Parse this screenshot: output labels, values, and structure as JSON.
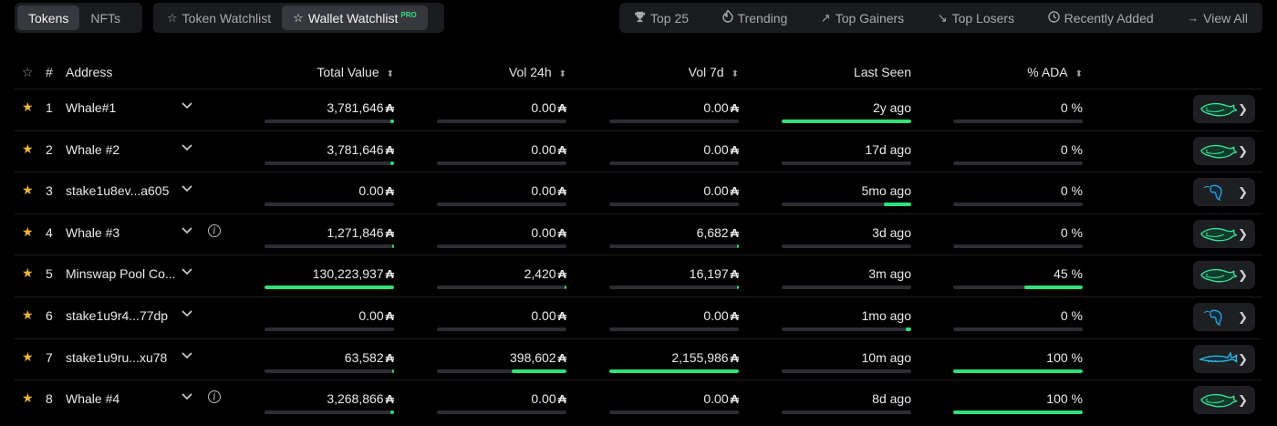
{
  "tabs_primary": [
    {
      "label": "Tokens",
      "active": true
    },
    {
      "label": "NFTs",
      "active": false
    }
  ],
  "tabs_watch": [
    {
      "label": "Token Watchlist",
      "icon": "star-outline-icon",
      "active": false
    },
    {
      "label": "Wallet Watchlist",
      "icon": "star-outline-icon",
      "active": true,
      "badge": "PRO"
    }
  ],
  "tabs_lists": [
    {
      "label": "Top 25",
      "icon": "trophy-icon"
    },
    {
      "label": "Trending",
      "icon": "fire-icon"
    },
    {
      "label": "Top Gainers",
      "icon": "arrow-up-right-icon"
    },
    {
      "label": "Top Losers",
      "icon": "arrow-down-right-icon"
    },
    {
      "label": "Recently Added",
      "icon": "clock-icon"
    },
    {
      "label": "View All",
      "icon": "arrow-right-icon"
    }
  ],
  "columns": {
    "index": "#",
    "address": "Address",
    "total_value": "Total Value",
    "vol24h": "Vol 24h",
    "vol7d": "Vol 7d",
    "last_seen": "Last Seen",
    "pct_ada": "% ADA"
  },
  "currency_symbol": "₳",
  "accent": "#2ee27c",
  "rows": [
    {
      "index": "1",
      "address": "Whale#1",
      "info": false,
      "total": "3,781,646",
      "total_pct": 0.03,
      "vol24": "0.00",
      "vol24_pct": 0.0,
      "vol7": "0.00",
      "vol7_pct": 0.0,
      "seen": "2y ago",
      "seen_pct": 1.0,
      "ada": "0 %",
      "ada_pct": 0.0,
      "whale": "green-whale-icon"
    },
    {
      "index": "2",
      "address": "Whale #2",
      "info": false,
      "total": "3,781,646",
      "total_pct": 0.03,
      "vol24": "0.00",
      "vol24_pct": 0.0,
      "vol7": "0.00",
      "vol7_pct": 0.0,
      "seen": "17d ago",
      "seen_pct": 0.0,
      "ada": "0 %",
      "ada_pct": 0.0,
      "whale": "green-whale-icon"
    },
    {
      "index": "3",
      "address": "stake1u8ev...a605",
      "info": false,
      "total": "0.00",
      "total_pct": 0.0,
      "vol24": "0.00",
      "vol24_pct": 0.0,
      "vol7": "0.00",
      "vol7_pct": 0.0,
      "seen": "5mo ago",
      "seen_pct": 0.21,
      "ada": "0 %",
      "ada_pct": 0.0,
      "whale": "blue-shrimp-icon"
    },
    {
      "index": "4",
      "address": "Whale #3",
      "info": true,
      "total": "1,271,846",
      "total_pct": 0.01,
      "vol24": "0.00",
      "vol24_pct": 0.0,
      "vol7": "6,682",
      "vol7_pct": 0.01,
      "seen": "3d ago",
      "seen_pct": 0.0,
      "ada": "0 %",
      "ada_pct": 0.0,
      "whale": "green-whale-icon"
    },
    {
      "index": "5",
      "address": "Minswap Pool Co...",
      "info": false,
      "total": "130,223,937",
      "total_pct": 1.0,
      "vol24": "2,420",
      "vol24_pct": 0.01,
      "vol7": "16,197",
      "vol7_pct": 0.01,
      "seen": "3m ago",
      "seen_pct": 0.0,
      "ada": "45 %",
      "ada_pct": 0.45,
      "whale": "green-whale-icon"
    },
    {
      "index": "6",
      "address": "stake1u9r4...77dp",
      "info": false,
      "total": "0.00",
      "total_pct": 0.0,
      "vol24": "0.00",
      "vol24_pct": 0.0,
      "vol7": "0.00",
      "vol7_pct": 0.0,
      "seen": "1mo ago",
      "seen_pct": 0.04,
      "ada": "0 %",
      "ada_pct": 0.0,
      "whale": "blue-shrimp-icon"
    },
    {
      "index": "7",
      "address": "stake1u9ru...xu78",
      "info": false,
      "total": "63,582",
      "total_pct": 0.005,
      "vol24": "398,602",
      "vol24_pct": 0.42,
      "vol7": "2,155,986",
      "vol7_pct": 1.0,
      "seen": "10m ago",
      "seen_pct": 0.0,
      "ada": "100 %",
      "ada_pct": 1.0,
      "whale": "blue-shark-icon"
    },
    {
      "index": "8",
      "address": "Whale #4",
      "info": true,
      "total": "3,268,866",
      "total_pct": 0.03,
      "vol24": "0.00",
      "vol24_pct": 0.0,
      "vol7": "0.00",
      "vol7_pct": 0.0,
      "seen": "8d ago",
      "seen_pct": 0.0,
      "ada": "100 %",
      "ada_pct": 1.0,
      "whale": "green-whale-icon"
    }
  ]
}
